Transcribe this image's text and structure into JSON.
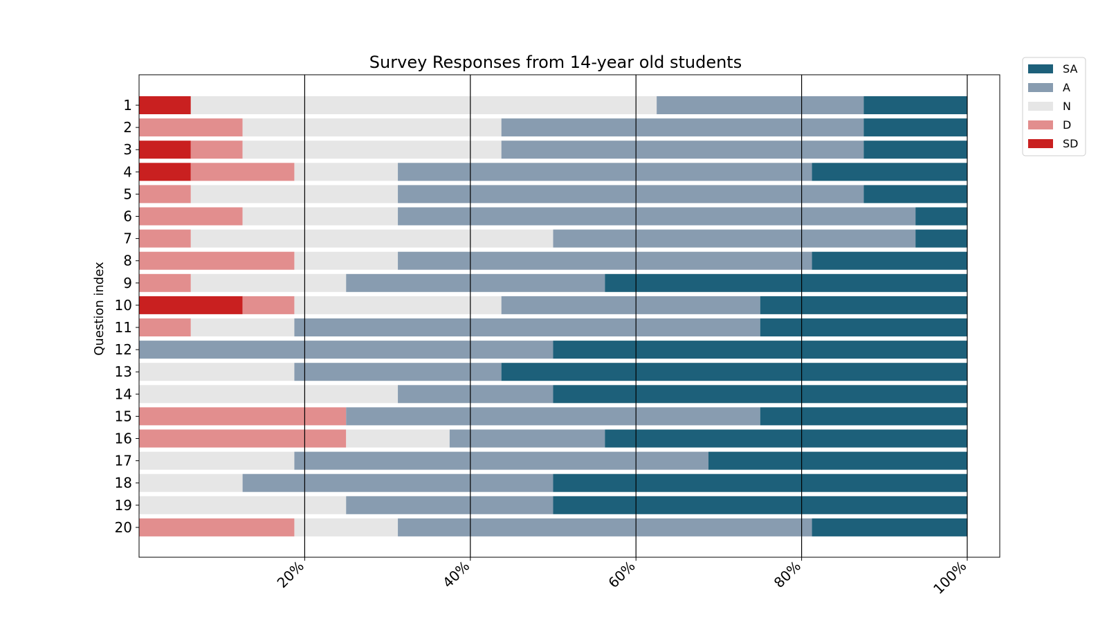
{
  "chart_data": {
    "type": "bar",
    "orientation": "horizontal",
    "stacked": true,
    "title": "Survey Responses from 14-year old students",
    "xlabel": "",
    "ylabel": "Question index",
    "categories": [
      "1",
      "2",
      "3",
      "4",
      "5",
      "6",
      "7",
      "8",
      "9",
      "10",
      "11",
      "12",
      "13",
      "14",
      "15",
      "16",
      "17",
      "18",
      "19",
      "20"
    ],
    "series": [
      {
        "name": "SD",
        "color": "#c92020",
        "values": [
          6.25,
          0,
          6.25,
          6.25,
          0,
          0,
          0,
          0,
          0,
          12.5,
          0,
          0,
          0,
          0,
          0,
          0,
          0,
          0,
          0,
          0
        ]
      },
      {
        "name": "D",
        "color": "#e28e8e",
        "values": [
          0,
          12.5,
          6.25,
          12.5,
          6.25,
          12.5,
          6.25,
          18.75,
          6.25,
          6.25,
          6.25,
          0,
          0,
          0,
          25,
          25,
          0,
          0,
          0,
          18.75
        ]
      },
      {
        "name": "N",
        "color": "#e6e6e6",
        "values": [
          56.25,
          31.25,
          31.25,
          12.5,
          25,
          18.75,
          43.75,
          12.5,
          18.75,
          25,
          12.5,
          0,
          18.75,
          31.25,
          0,
          12.5,
          18.75,
          12.5,
          25,
          12.5
        ]
      },
      {
        "name": "A",
        "color": "#889cb0",
        "values": [
          25,
          43.75,
          43.75,
          50,
          56.25,
          62.5,
          43.75,
          50,
          31.25,
          31.25,
          56.25,
          50,
          25,
          18.75,
          50,
          18.75,
          50,
          37.5,
          25,
          50
        ]
      },
      {
        "name": "SA",
        "color": "#1d607a",
        "values": [
          12.5,
          12.5,
          12.5,
          18.75,
          12.5,
          6.25,
          6.25,
          18.75,
          43.75,
          25,
          25,
          50,
          56.25,
          50,
          25,
          43.75,
          31.25,
          50,
          50,
          18.75
        ]
      }
    ],
    "xticks": [
      20,
      40,
      60,
      80,
      100
    ],
    "xtick_labels": [
      "20%",
      "40%",
      "60%",
      "80%",
      "100%"
    ],
    "xlim": [
      0,
      105
    ],
    "grid": "vertical lines at ticks",
    "legend": {
      "placement": "outside-top-right",
      "order": [
        "SA",
        "A",
        "N",
        "D",
        "SD"
      ]
    }
  }
}
